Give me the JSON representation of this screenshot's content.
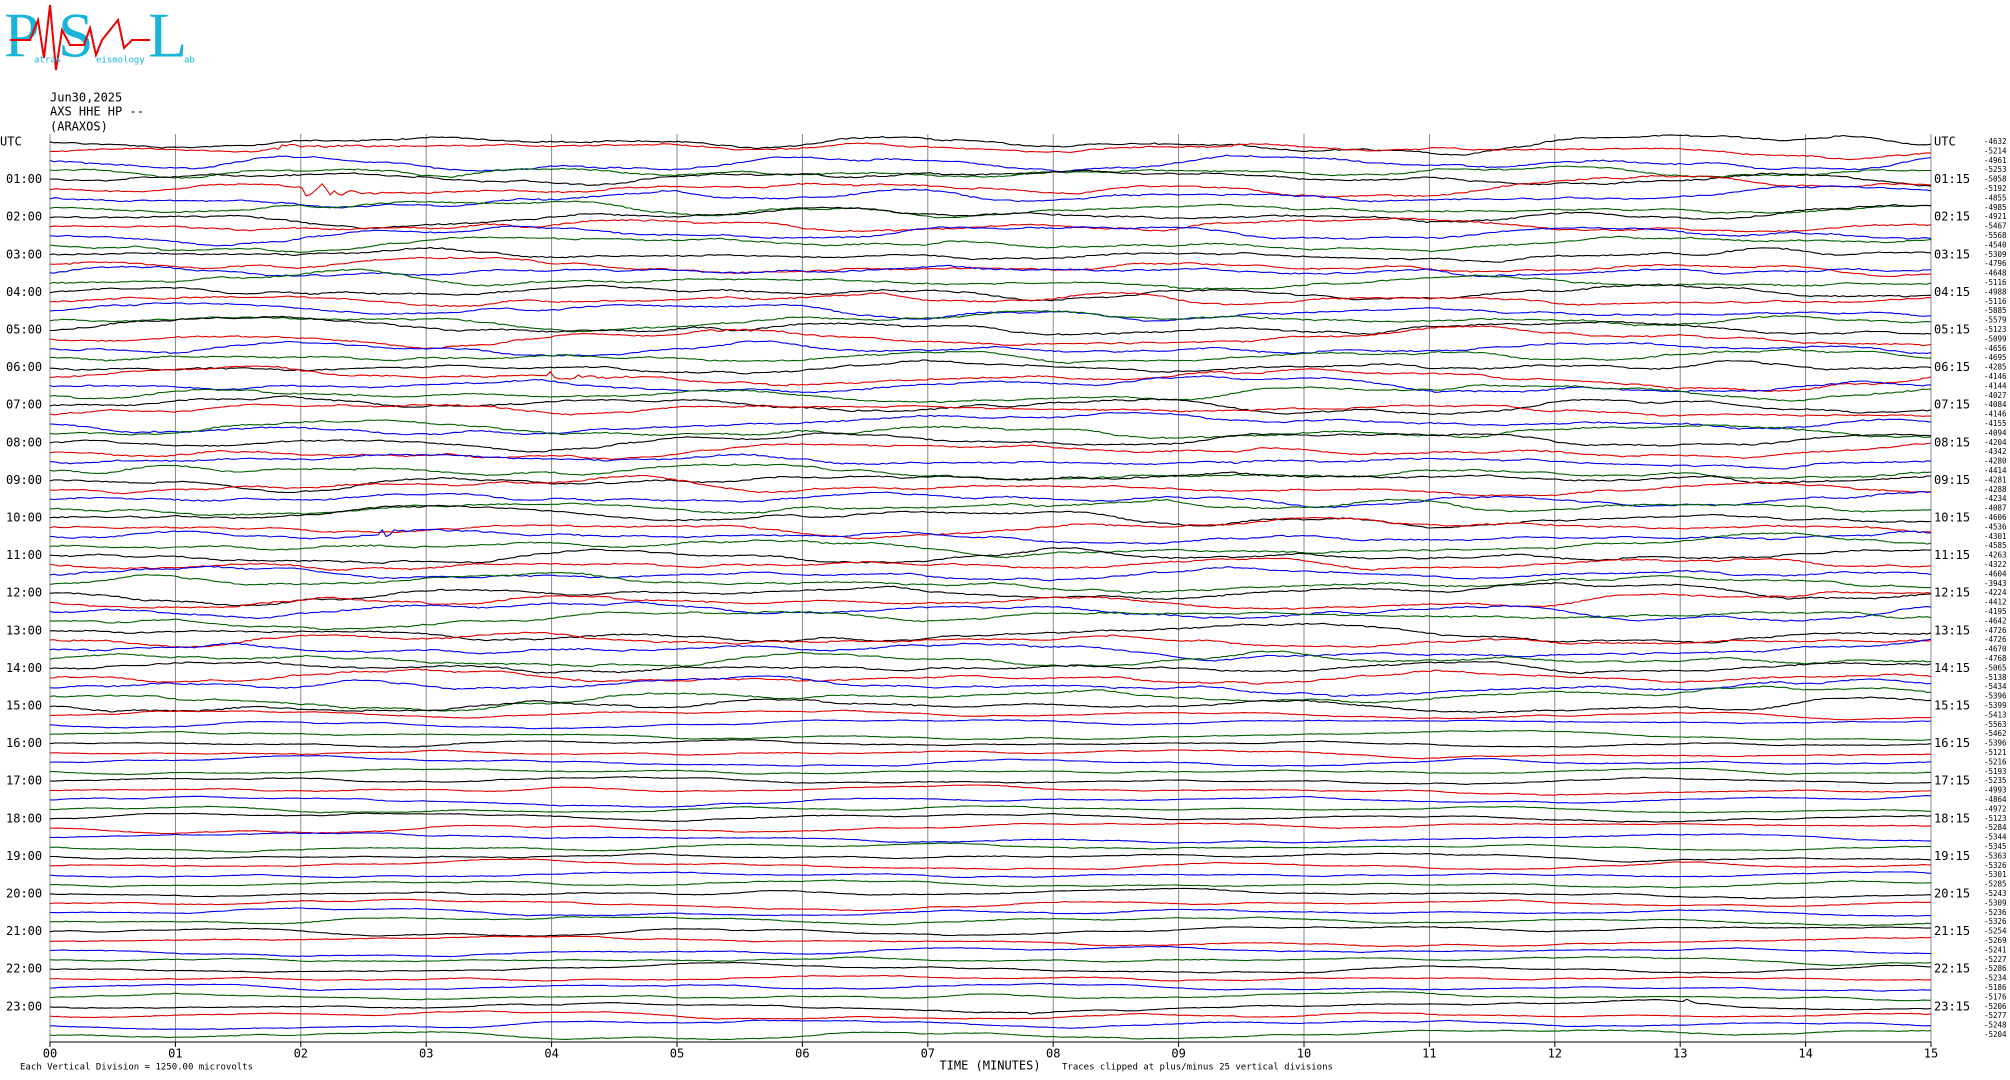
{
  "logo": {
    "letters": [
      "P",
      "S",
      "L"
    ],
    "subtitles": [
      "atras",
      "eismology",
      "ab"
    ]
  },
  "header": {
    "date": "Jun30,2025",
    "station": "AXS HHE HP --",
    "location": "(ARAXOS)"
  },
  "left_labels": [
    "UTC",
    "01:00",
    "02:00",
    "03:00",
    "04:00",
    "05:00",
    "06:00",
    "07:00",
    "08:00",
    "09:00",
    "10:00",
    "11:00",
    "12:00",
    "13:00",
    "14:00",
    "15:00",
    "16:00",
    "17:00",
    "18:00",
    "19:00",
    "20:00",
    "21:00",
    "22:00",
    "23:00"
  ],
  "right_labels": [
    "UTC",
    "01:15",
    "02:15",
    "03:15",
    "04:15",
    "05:15",
    "06:15",
    "07:15",
    "08:15",
    "09:15",
    "10:15",
    "11:15",
    "12:15",
    "13:15",
    "14:15",
    "15:15",
    "16:15",
    "17:15",
    "18:15",
    "19:15",
    "20:15",
    "21:15",
    "22:15",
    "23:15"
  ],
  "offsets": [
    -4632,
    -5214,
    -4961,
    -5253,
    -5058,
    -5192,
    -4855,
    -4985,
    -4921,
    -5467,
    -5568,
    -4540,
    -5309,
    -4796,
    -4648,
    -5116,
    -4988,
    -5116,
    -5885,
    -5579,
    -5123,
    -5099,
    -4656,
    -4695,
    -4285,
    -4146,
    -4144,
    -4027,
    -4084,
    -4146,
    -4155,
    -4094,
    -4204,
    -4342,
    -4280,
    -4414,
    -4281,
    -4288,
    -4234,
    -4087,
    -4606,
    -4536,
    -4301,
    -4585,
    -4263,
    -4322,
    -4604,
    -3943,
    -4224,
    -4412,
    -4195,
    -4642,
    -4726,
    -4726,
    -4670,
    -4768,
    -5065,
    -5138,
    -5434,
    -5396,
    -5399,
    -5413,
    -5563,
    -5462,
    -5396,
    -5121,
    -5216,
    -5193,
    -5235,
    -4993,
    -4864,
    -4972,
    -5123,
    -5284,
    -5344,
    -5345,
    -5363,
    -5326,
    -5301,
    -5285,
    -5243,
    -5309,
    -5236,
    -5326,
    -5254,
    -5269,
    -5241,
    -5227,
    -5286,
    -5234,
    -5186,
    -5176,
    -5206,
    -5277,
    -5248,
    -5204
  ],
  "x_ticks": [
    "00",
    "01",
    "02",
    "03",
    "04",
    "05",
    "06",
    "07",
    "08",
    "09",
    "10",
    "11",
    "12",
    "13",
    "14",
    "15"
  ],
  "footer": {
    "scale": "Each Vertical Division = 1250.00 microvolts",
    "x_label": "TIME (MINUTES)",
    "clip": "Traces clipped at plus/minus 25 vertical divisions"
  },
  "trace_colors": [
    "#000000",
    "#e00000",
    "#0000ee",
    "#006000"
  ]
}
